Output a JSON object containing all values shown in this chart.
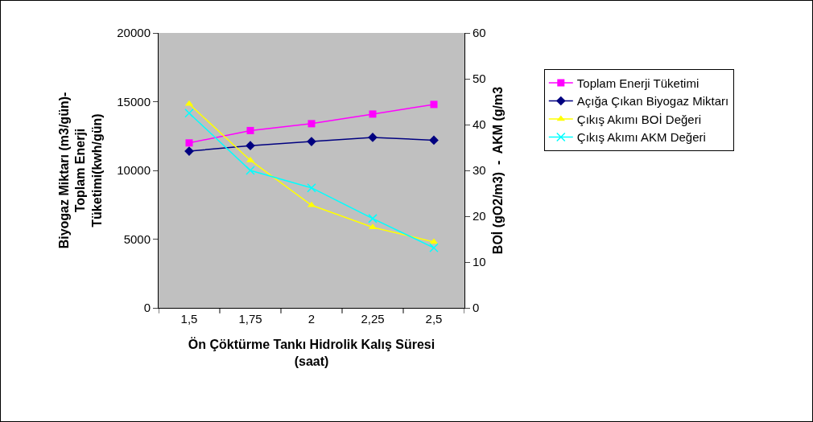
{
  "chart_data": {
    "type": "line",
    "xlabel": "Ön Çöktürme Tankı Hidrolik Kalış Süresi\n(saat)",
    "ylabel": "Biyogaz Miktarı (m3/gün)-\nToplam Enerji\nTüketimi(kwh/gün)",
    "y2label": "BOİ (gO2/m3)  -  AKM (g/m3",
    "categories": [
      "1,5",
      "1,75",
      "2",
      "2,25",
      "2,5"
    ],
    "series": [
      {
        "name": "Toplam Enerji Tüketimi",
        "color": "#ff00ff",
        "marker": "square",
        "values": [
          12000,
          12900,
          13400,
          14100,
          14800
        ]
      },
      {
        "name": "Açığa Çıkan Biyogaz Miktarı",
        "color": "#000080",
        "marker": "diamond",
        "values": [
          11400,
          11800,
          12100,
          12400,
          12200
        ]
      },
      {
        "name": "Çıkış Akımı BOİ Değeri",
        "color": "#ffff00",
        "marker": "triangle",
        "axis": "y2",
        "values": [
          44.5,
          32.2,
          22.4,
          17.6,
          14.4
        ]
      },
      {
        "name": "Çıkış Akımı AKM Değeri",
        "color": "#00ffff",
        "marker": "cross",
        "axis": "y2",
        "values": [
          42.5,
          30,
          26.2,
          19.5,
          13.1
        ]
      }
    ],
    "ylim": [
      0,
      20000
    ],
    "yticks": [
      0,
      5000,
      10000,
      15000,
      20000
    ],
    "y2lim": [
      0,
      60
    ],
    "y2ticks": [
      0,
      10,
      20,
      30,
      40,
      50,
      60
    ],
    "grid": false,
    "legend": "right",
    "line_style": "solid"
  }
}
